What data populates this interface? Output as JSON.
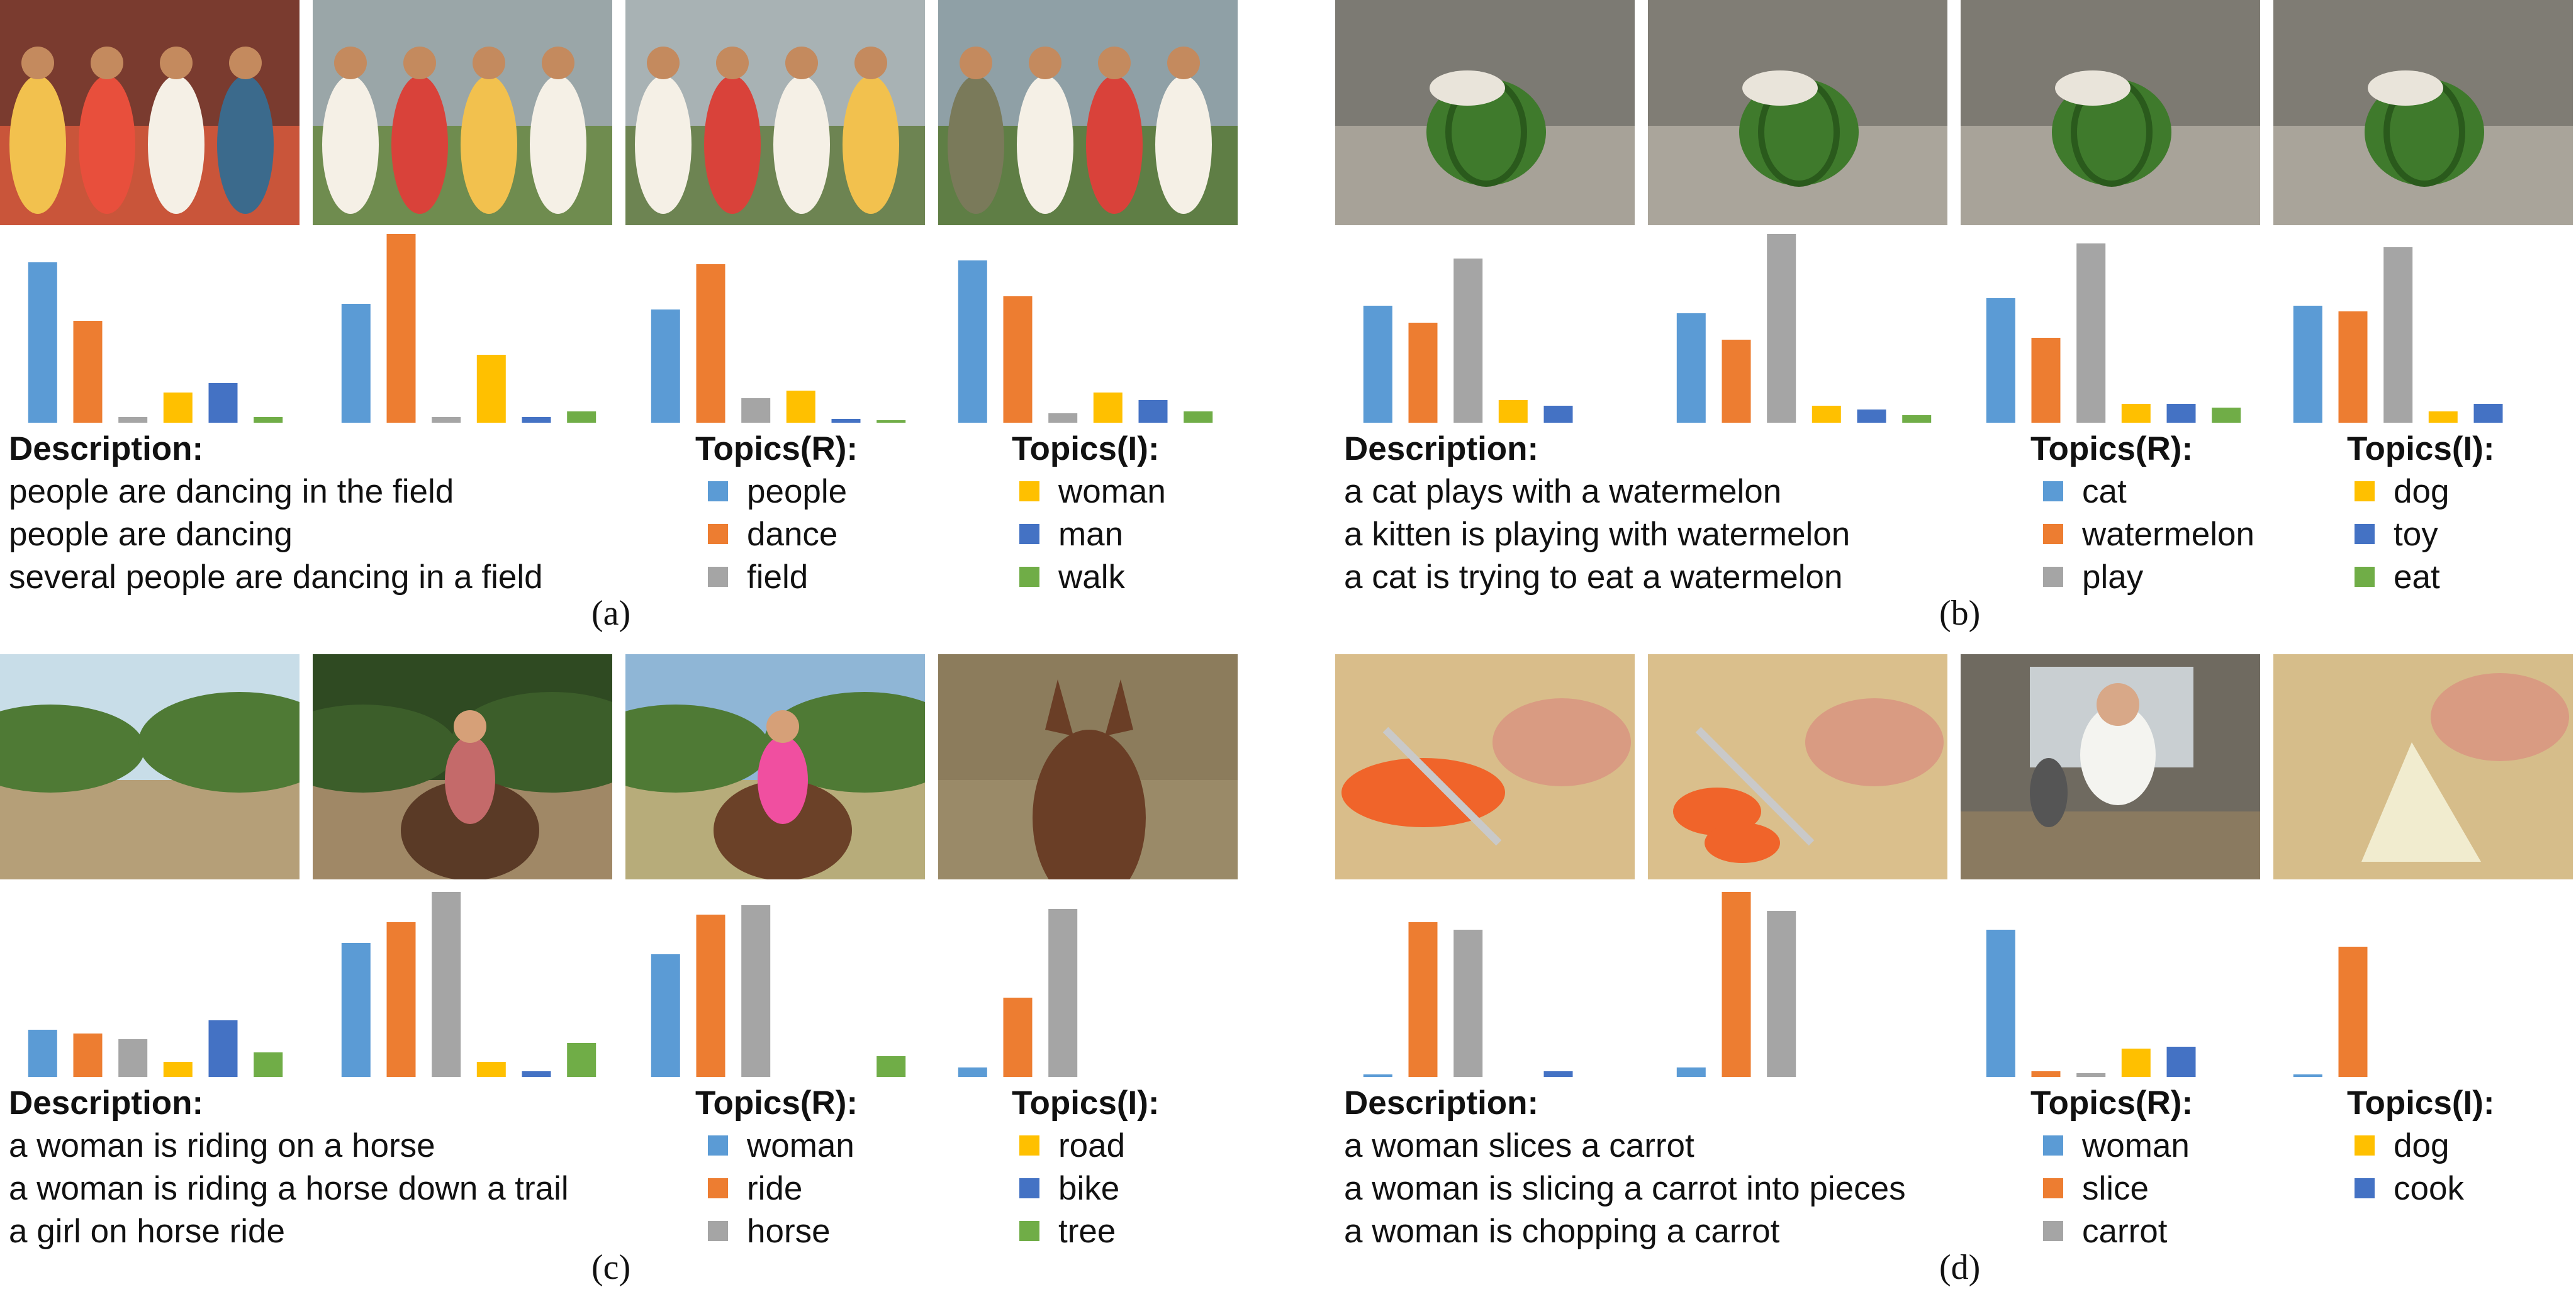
{
  "palette": {
    "blue": "#5B9BD5",
    "orange": "#ED7D31",
    "gray": "#A5A5A5",
    "yellow": "#FFC000",
    "dark_blue": "#4472C4",
    "green": "#70AD47"
  },
  "labels": {
    "description": "Description:",
    "topics_r": "Topics(R):",
    "topics_i": "Topics(I):"
  },
  "panels": [
    {
      "caption": "(a)",
      "frames": [
        "dancers-crowd-frame",
        "dancers-field-frame",
        "dancers-hills-frame",
        "dancers-man-frame"
      ],
      "descriptions": [
        "people are dancing in the field",
        "people are dancing",
        "several people are dancing in a field"
      ],
      "topics_r": [
        {
          "label": "people",
          "color": "blue"
        },
        {
          "label": "dance",
          "color": "orange"
        },
        {
          "label": "field",
          "color": "gray"
        }
      ],
      "topics_i": [
        {
          "label": "woman",
          "color": "yellow"
        },
        {
          "label": "man",
          "color": "dark_blue"
        },
        {
          "label": "walk",
          "color": "green"
        }
      ]
    },
    {
      "caption": "(b)",
      "frames": [
        "cat-watermelon-frame-1",
        "cat-watermelon-frame-2",
        "cat-watermelon-frame-3",
        "cat-watermelon-frame-4"
      ],
      "descriptions": [
        "a cat plays with a watermelon",
        "a kitten is playing with watermelon",
        "a cat is trying to eat a watermelon"
      ],
      "topics_r": [
        {
          "label": "cat",
          "color": "blue"
        },
        {
          "label": "watermelon",
          "color": "orange"
        },
        {
          "label": "play",
          "color": "gray"
        }
      ],
      "topics_i": [
        {
          "label": "dog",
          "color": "yellow"
        },
        {
          "label": "toy",
          "color": "dark_blue"
        },
        {
          "label": "eat",
          "color": "green"
        }
      ]
    },
    {
      "caption": "(c)",
      "frames": [
        "trail-frame",
        "rider-forest-frame",
        "girl-horse-frame",
        "horse-head-frame"
      ],
      "descriptions": [
        "a woman is riding on a horse",
        "a woman is riding a horse down a trail",
        "a girl on horse ride"
      ],
      "topics_r": [
        {
          "label": "woman",
          "color": "blue"
        },
        {
          "label": "ride",
          "color": "orange"
        },
        {
          "label": "horse",
          "color": "gray"
        }
      ],
      "topics_i": [
        {
          "label": "road",
          "color": "yellow"
        },
        {
          "label": "bike",
          "color": "dark_blue"
        },
        {
          "label": "tree",
          "color": "green"
        }
      ]
    },
    {
      "caption": "(d)",
      "frames": [
        "carrot-slice-frame-1",
        "carrot-slice-frame-2",
        "kitchen-woman-frame",
        "bamboo-shoot-frame"
      ],
      "descriptions": [
        "a woman slices a carrot",
        "a woman is slicing a carrot into pieces",
        "a woman is chopping a carrot"
      ],
      "topics_r": [
        {
          "label": "woman",
          "color": "blue"
        },
        {
          "label": "slice",
          "color": "orange"
        },
        {
          "label": "carrot",
          "color": "gray"
        }
      ],
      "topics_i": [
        {
          "label": "dog",
          "color": "yellow"
        },
        {
          "label": "cook",
          "color": "dark_blue"
        }
      ]
    }
  ],
  "chart_data": [
    {
      "type": "bar",
      "panel": "a",
      "frame": 1,
      "series_order": [
        "blue",
        "orange",
        "gray",
        "yellow",
        "dark_blue",
        "green"
      ],
      "values": [
        0.85,
        0.54,
        0.03,
        0.16,
        0.21,
        0.03
      ],
      "ylim": [
        0,
        1
      ]
    },
    {
      "type": "bar",
      "panel": "a",
      "frame": 2,
      "series_order": [
        "blue",
        "orange",
        "gray",
        "yellow",
        "dark_blue",
        "green"
      ],
      "values": [
        0.63,
        1.0,
        0.03,
        0.36,
        0.03,
        0.06
      ],
      "ylim": [
        0,
        1
      ]
    },
    {
      "type": "bar",
      "panel": "a",
      "frame": 3,
      "series_order": [
        "blue",
        "orange",
        "gray",
        "yellow",
        "dark_blue",
        "green"
      ],
      "values": [
        0.6,
        0.84,
        0.13,
        0.17,
        0.02,
        0.01
      ],
      "ylim": [
        0,
        1
      ]
    },
    {
      "type": "bar",
      "panel": "a",
      "frame": 4,
      "series_order": [
        "blue",
        "orange",
        "gray",
        "yellow",
        "dark_blue",
        "green"
      ],
      "values": [
        0.86,
        0.67,
        0.05,
        0.16,
        0.12,
        0.06
      ],
      "ylim": [
        0,
        1
      ]
    },
    {
      "type": "bar",
      "panel": "b",
      "frame": 1,
      "series_order": [
        "blue",
        "orange",
        "gray",
        "yellow",
        "dark_blue",
        "green"
      ],
      "values": [
        0.62,
        0.53,
        0.87,
        0.12,
        0.09,
        0.0
      ],
      "ylim": [
        0,
        1
      ]
    },
    {
      "type": "bar",
      "panel": "b",
      "frame": 2,
      "series_order": [
        "blue",
        "orange",
        "gray",
        "yellow",
        "dark_blue",
        "green"
      ],
      "values": [
        0.58,
        0.44,
        1.0,
        0.09,
        0.07,
        0.04
      ],
      "ylim": [
        0,
        1
      ]
    },
    {
      "type": "bar",
      "panel": "b",
      "frame": 3,
      "series_order": [
        "blue",
        "orange",
        "gray",
        "yellow",
        "dark_blue",
        "green"
      ],
      "values": [
        0.66,
        0.45,
        0.95,
        0.1,
        0.1,
        0.08
      ],
      "ylim": [
        0,
        1
      ]
    },
    {
      "type": "bar",
      "panel": "b",
      "frame": 4,
      "series_order": [
        "blue",
        "orange",
        "gray",
        "yellow",
        "dark_blue",
        "green"
      ],
      "values": [
        0.62,
        0.59,
        0.93,
        0.06,
        0.1,
        0.0
      ],
      "ylim": [
        0,
        1
      ]
    },
    {
      "type": "bar",
      "panel": "c",
      "frame": 1,
      "series_order": [
        "blue",
        "orange",
        "gray",
        "yellow",
        "dark_blue",
        "green"
      ],
      "values": [
        0.25,
        0.23,
        0.2,
        0.08,
        0.3,
        0.13
      ],
      "ylim": [
        0,
        1
      ]
    },
    {
      "type": "bar",
      "panel": "c",
      "frame": 2,
      "series_order": [
        "blue",
        "orange",
        "gray",
        "yellow",
        "dark_blue",
        "green"
      ],
      "values": [
        0.71,
        0.82,
        0.98,
        0.08,
        0.03,
        0.18
      ],
      "ylim": [
        0,
        1
      ]
    },
    {
      "type": "bar",
      "panel": "c",
      "frame": 3,
      "series_order": [
        "blue",
        "orange",
        "gray",
        "yellow",
        "dark_blue",
        "green"
      ],
      "values": [
        0.65,
        0.86,
        0.91,
        0.0,
        0.0,
        0.11
      ],
      "ylim": [
        0,
        1
      ]
    },
    {
      "type": "bar",
      "panel": "c",
      "frame": 4,
      "series_order": [
        "blue",
        "orange",
        "gray",
        "yellow",
        "dark_blue",
        "green"
      ],
      "values": [
        0.05,
        0.42,
        0.89,
        0.0,
        0.0,
        0.0
      ],
      "ylim": [
        0,
        1
      ]
    },
    {
      "type": "bar",
      "panel": "d",
      "frame": 1,
      "series_order": [
        "blue",
        "orange",
        "gray",
        "yellow",
        "dark_blue",
        "green"
      ],
      "values": [
        0.01,
        0.82,
        0.78,
        0.0,
        0.03,
        0.0
      ],
      "ylim": [
        0,
        1
      ]
    },
    {
      "type": "bar",
      "panel": "d",
      "frame": 2,
      "series_order": [
        "blue",
        "orange",
        "gray",
        "yellow",
        "dark_blue",
        "green"
      ],
      "values": [
        0.05,
        0.98,
        0.88,
        0.0,
        0.0,
        0.0
      ],
      "ylim": [
        0,
        1
      ]
    },
    {
      "type": "bar",
      "panel": "d",
      "frame": 3,
      "series_order": [
        "blue",
        "orange",
        "gray",
        "yellow",
        "dark_blue",
        "green"
      ],
      "values": [
        0.78,
        0.03,
        0.02,
        0.15,
        0.16,
        0.0
      ],
      "ylim": [
        0,
        1
      ]
    },
    {
      "type": "bar",
      "panel": "d",
      "frame": 4,
      "series_order": [
        "blue",
        "orange",
        "gray",
        "yellow",
        "dark_blue",
        "green"
      ],
      "values": [
        0.01,
        0.69,
        0.0,
        0.0,
        0.0,
        0.0
      ],
      "ylim": [
        0,
        1
      ]
    }
  ]
}
